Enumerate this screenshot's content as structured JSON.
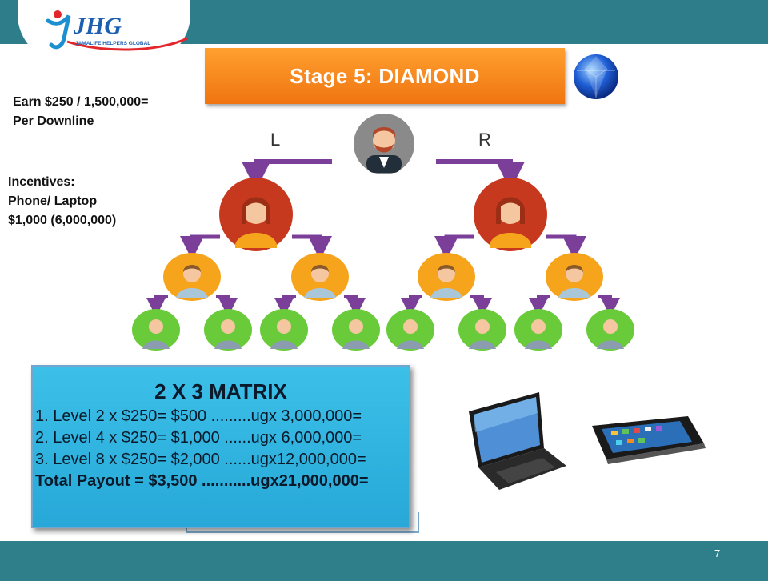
{
  "logo": {
    "mark": "JHG",
    "tagline": "JAMALIFE HELPERS GLOBAL"
  },
  "banner": {
    "title": "Stage 5: DIAMOND"
  },
  "earn": {
    "line1": "Earn $250 / 1,500,000=",
    "line2": "Per Downline"
  },
  "incentives": {
    "line1": "Incentives:",
    "line2": "Phone/ Laptop",
    "line3": "$1,000 (6,000,000)"
  },
  "tree": {
    "left_label": "L",
    "right_label": "R"
  },
  "matrix": {
    "title": "2 X 3 MATRIX",
    "lines": [
      "1. Level 2 x $250= $500 .........ugx 3,000,000=",
      "2. Level 4 x $250= $1,000 ......ugx 6,000,000=",
      "3. Level 8 x $250= $2,000 ......ugx12,000,000="
    ],
    "total": "Total Payout = $3,500 ...........ugx21,000,000="
  },
  "page_number": "7",
  "colors": {
    "top_band": "#2d7d8a",
    "banner": "#f58a1f",
    "matrix_box": "#2fb4e0",
    "root_node": "#8a8a8a",
    "level1_node": "#c7391f",
    "level2_node": "#f5a41c",
    "level3_node": "#6acb3a",
    "arrow": "#7b3f9a"
  }
}
